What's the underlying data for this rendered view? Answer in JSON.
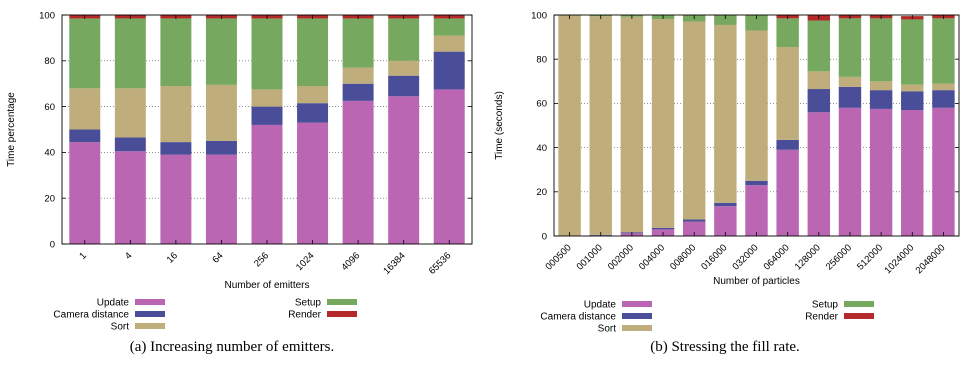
{
  "chart_data": [
    {
      "type": "bar",
      "stacked": true,
      "caption": "(a)  Increasing number of emitters.",
      "xlabel": "Number of emitters",
      "ylabel": "Time percentage",
      "ylim": [
        0,
        100
      ],
      "yticks": [
        0,
        20,
        40,
        60,
        80,
        100
      ],
      "grid": true,
      "categories": [
        "1",
        "4",
        "16",
        "64",
        "256",
        "1024",
        "4096",
        "16384",
        "65536"
      ],
      "series": [
        {
          "name": "Update",
          "color": "#bb66b3",
          "values": [
            44.5,
            40.5,
            39,
            39,
            52,
            53,
            62.5,
            64.5,
            67.5
          ]
        },
        {
          "name": "Camera distance",
          "color": "#4a4d98",
          "values": [
            5.5,
            6,
            5.5,
            6,
            8,
            8.5,
            7.5,
            9,
            16.5
          ]
        },
        {
          "name": "Sort",
          "color": "#bfae7c",
          "values": [
            18,
            21.5,
            24.5,
            24.5,
            7.5,
            7.5,
            7,
            6.5,
            7
          ]
        },
        {
          "name": "Setup",
          "color": "#77a85f",
          "values": [
            30.5,
            30.5,
            29.5,
            29,
            31,
            29.5,
            21.5,
            18.5,
            7.5
          ]
        },
        {
          "name": "Render",
          "color": "#b42a2a",
          "values": [
            1.5,
            1.5,
            1.5,
            1.5,
            1.5,
            1.5,
            1.5,
            1.5,
            1.5
          ]
        }
      ],
      "legend": {
        "placement": "bottom",
        "left": [
          "Update",
          "Camera distance",
          "Sort"
        ],
        "right": [
          "Setup",
          "Render"
        ]
      }
    },
    {
      "type": "bar",
      "stacked": true,
      "caption": "(b)  Stressing the fill rate.",
      "xlabel": "Number of particles",
      "ylabel": "Time (seconds)",
      "ylim": [
        0,
        100
      ],
      "yticks": [
        0,
        20,
        40,
        60,
        80,
        100
      ],
      "grid": true,
      "categories": [
        "000500",
        "001000",
        "002000",
        "004000",
        "008000",
        "016000",
        "032000",
        "064000",
        "128000",
        "256000",
        "512000",
        "1024000",
        "2048000"
      ],
      "series": [
        {
          "name": "Update",
          "color": "#bb66b3",
          "values": [
            0,
            0.3,
            1.2,
            3,
            6.5,
            13.5,
            23,
            39,
            56,
            58,
            57.5,
            57,
            58
          ]
        },
        {
          "name": "Camera distance",
          "color": "#4a4d98",
          "values": [
            0,
            0.2,
            0.5,
            0.7,
            1,
            1.5,
            2,
            4.5,
            10.5,
            9.5,
            8.5,
            8.5,
            8
          ]
        },
        {
          "name": "Sort",
          "color": "#bfae7c",
          "values": [
            99.8,
            99,
            97.5,
            94.5,
            89.5,
            80.5,
            68,
            42,
            8,
            4.5,
            4,
            3,
            3
          ]
        },
        {
          "name": "Setup",
          "color": "#77a85f",
          "values": [
            0.2,
            0.5,
            0.8,
            1.8,
            3,
            4.5,
            7,
            13,
            23,
            26.5,
            28.5,
            29.5,
            29.5
          ]
        },
        {
          "name": "Render",
          "color": "#b42a2a",
          "values": [
            0,
            0,
            0,
            0,
            0,
            0,
            0,
            1.5,
            2.5,
            1.5,
            1.5,
            1.5,
            1.5
          ]
        }
      ],
      "legend": {
        "placement": "bottom",
        "left": [
          "Update",
          "Camera distance",
          "Sort"
        ],
        "right": [
          "Setup",
          "Render"
        ]
      }
    }
  ]
}
